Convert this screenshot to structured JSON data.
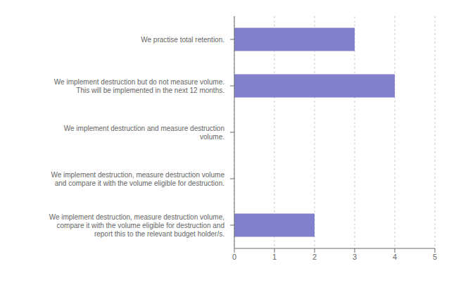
{
  "chart_data": {
    "type": "bar",
    "orientation": "horizontal",
    "categories": [
      "We practise total retention.",
      "We implement destruction but do not measure volume.\nThis will be implemented in the next 12 months.",
      "We implement destruction and measure destruction\nvolume.",
      "We implement destruction, measure destruction volume\nand compare it with the volume eligible for destruction.",
      "We implement destruction, measure destruction volume,\ncompare it with the volume eligible for destruction and\nreport this to the relevant budget holder/s."
    ],
    "values": [
      3,
      4,
      0,
      0,
      2
    ],
    "color": "#8080cc",
    "xlim": [
      0,
      5
    ],
    "xticks": [
      0,
      1,
      2,
      3,
      4,
      5
    ],
    "grid": true
  }
}
